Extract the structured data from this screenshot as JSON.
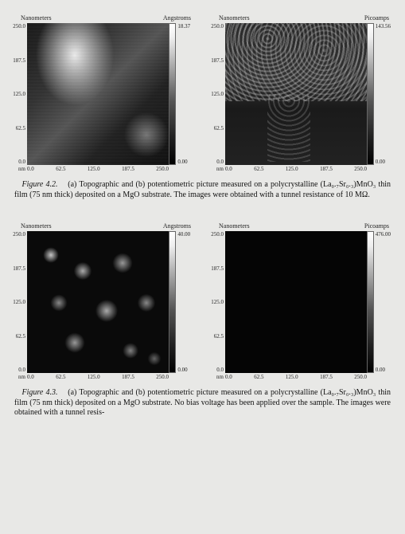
{
  "fig42": {
    "panel_a": {
      "y_unit": "Nanometers",
      "cb_unit": "Angstroms",
      "x_unit": "nm",
      "y_ticks": [
        "250.0",
        "187.5",
        "125.0",
        "62.5",
        "0.0"
      ],
      "x_ticks": [
        "0.0",
        "62.5",
        "125.0",
        "187.5",
        "250.0"
      ],
      "cb_max": "18.37",
      "cb_min": "0.00"
    },
    "panel_b": {
      "y_unit": "Nanometers",
      "cb_unit": "Picoamps",
      "x_unit": "nm",
      "y_ticks": [
        "250.0",
        "187.5",
        "125.0",
        "62.5",
        "0.0"
      ],
      "x_ticks": [
        "0.0",
        "62.5",
        "125.0",
        "187.5",
        "250.0"
      ],
      "cb_max": "143.56",
      "cb_min": "0.00"
    },
    "caption_label": "Figure 4.2.",
    "caption_text": "(a) Topographic and (b) potentiometric picture measured on a polycrystalline (La₀.₇Sr₀.₃)MnO₃ thin film (75 nm thick) deposited on a MgO substrate. The images were obtained with a tunnel resistance of 10 MΩ."
  },
  "fig43": {
    "panel_a": {
      "y_unit": "Nanometers",
      "cb_unit": "Angstroms",
      "x_unit": "nm",
      "y_ticks": [
        "250.0",
        "187.5",
        "125.0",
        "62.5",
        "0.0"
      ],
      "x_ticks": [
        "0.0",
        "62.5",
        "125.0",
        "187.5",
        "250.0"
      ],
      "cb_max": "40.00",
      "cb_min": "0.00"
    },
    "panel_b": {
      "y_unit": "Nanometers",
      "cb_unit": "Picoamps",
      "x_unit": "nm",
      "y_ticks": [
        "250.0",
        "187.5",
        "125.0",
        "62.5",
        "0.0"
      ],
      "x_ticks": [
        "0.0",
        "62.5",
        "125.0",
        "187.5",
        "250.0"
      ],
      "cb_max": "476.00",
      "cb_min": "0.00"
    },
    "caption_label": "Figure 4.3.",
    "caption_text": "(a) Topographic and (b) potentiometric picture measured on a polycrystalline (La₀.₇Sr₀.₃)MnO₃ thin film (75 nm thick) deposited on a MgO substrate. No bias voltage has been applied over the sample. The images were obtained with a tunnel resis-"
  }
}
